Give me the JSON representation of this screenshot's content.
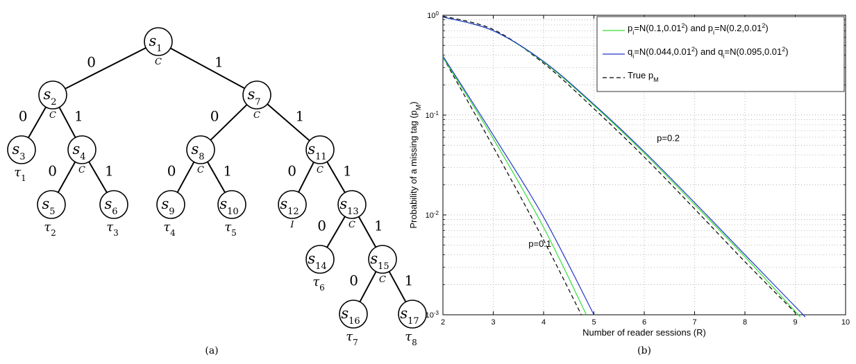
{
  "tree": {
    "nodes": [
      {
        "id": "s1",
        "base": "s",
        "sub": "1",
        "below": "C"
      },
      {
        "id": "s2",
        "base": "s",
        "sub": "2",
        "below": "C"
      },
      {
        "id": "s3",
        "base": "s",
        "sub": "3",
        "below": "τ1"
      },
      {
        "id": "s4",
        "base": "s",
        "sub": "4",
        "below": "C"
      },
      {
        "id": "s5",
        "base": "s",
        "sub": "5",
        "below": "τ2"
      },
      {
        "id": "s6",
        "base": "s",
        "sub": "6",
        "below": "τ3"
      },
      {
        "id": "s7",
        "base": "s",
        "sub": "7",
        "below": "C"
      },
      {
        "id": "s8",
        "base": "s",
        "sub": "8",
        "below": "C"
      },
      {
        "id": "s9",
        "base": "s",
        "sub": "9",
        "below": "τ4"
      },
      {
        "id": "s10",
        "base": "s",
        "sub": "10",
        "below": "τ5"
      },
      {
        "id": "s11",
        "base": "s",
        "sub": "11",
        "below": "C"
      },
      {
        "id": "s12",
        "base": "s",
        "sub": "12",
        "below": "I"
      },
      {
        "id": "s13",
        "base": "s",
        "sub": "13",
        "below": "C"
      },
      {
        "id": "s14",
        "base": "s",
        "sub": "14",
        "below": "τ6"
      },
      {
        "id": "s15",
        "base": "s",
        "sub": "15",
        "below": "C"
      },
      {
        "id": "s16",
        "base": "s",
        "sub": "16",
        "below": "τ7"
      },
      {
        "id": "s17",
        "base": "s",
        "sub": "17",
        "below": "τ8"
      }
    ],
    "edges": [
      {
        "from": "s1",
        "to": "s2",
        "label": "0"
      },
      {
        "from": "s1",
        "to": "s7",
        "label": "1"
      },
      {
        "from": "s2",
        "to": "s3",
        "label": "0"
      },
      {
        "from": "s2",
        "to": "s4",
        "label": "1"
      },
      {
        "from": "s4",
        "to": "s5",
        "label": "0"
      },
      {
        "from": "s4",
        "to": "s6",
        "label": "1"
      },
      {
        "from": "s7",
        "to": "s8",
        "label": "0"
      },
      {
        "from": "s7",
        "to": "s11",
        "label": "1"
      },
      {
        "from": "s8",
        "to": "s9",
        "label": "0"
      },
      {
        "from": "s8",
        "to": "s10",
        "label": "1"
      },
      {
        "from": "s11",
        "to": "s12",
        "label": "0"
      },
      {
        "from": "s11",
        "to": "s13",
        "label": "1"
      },
      {
        "from": "s13",
        "to": "s14",
        "label": "0"
      },
      {
        "from": "s13",
        "to": "s15",
        "label": "1"
      },
      {
        "from": "s15",
        "to": "s16",
        "label": "0"
      },
      {
        "from": "s15",
        "to": "s17",
        "label": "1"
      }
    ]
  },
  "captions": {
    "a": "(a)",
    "b": "(b)"
  },
  "chart_data": {
    "type": "line",
    "title": "",
    "xlabel": "Number of reader sessions (R)",
    "ylabel_main": "Probability of a missing tag (p",
    "ylabel_sub": "M",
    "ylabel_close": ")",
    "xlim": [
      2,
      10
    ],
    "ylim": [
      0.001,
      1
    ],
    "yscale": "log",
    "grid": true,
    "xticks": [
      "2",
      "3",
      "4",
      "5",
      "6",
      "7",
      "8",
      "9",
      "10"
    ],
    "yticks": [
      {
        "base": "10",
        "exp": "0",
        "value": 1
      },
      {
        "base": "10",
        "exp": "-1",
        "value": 0.1
      },
      {
        "base": "10",
        "exp": "-2",
        "value": 0.01
      },
      {
        "base": "10",
        "exp": "-3",
        "value": 0.001
      }
    ],
    "legend_position": "top-right",
    "legend": [
      {
        "parts": [
          "p",
          "i",
          "=N(0.1,0.01",
          "2",
          ") and p",
          "i",
          "=N(0.2,0.01",
          "2",
          ")"
        ],
        "color": "#33dd33",
        "dash": ""
      },
      {
        "parts": [
          "q",
          "i",
          "=N(0.044,0.01",
          "2",
          ") and q",
          "i",
          "=N(0.095,0.01",
          "2",
          ")"
        ],
        "color": "#2233cc",
        "dash": ""
      },
      {
        "parts": [
          "True p",
          "M",
          "",
          "",
          "",
          "",
          "",
          "",
          ""
        ],
        "color": "#000000",
        "dash": "6 4"
      }
    ],
    "annotations": [
      {
        "text": "p=0.2",
        "x": 6.25,
        "y": 0.055
      },
      {
        "text": "p=0.1",
        "x": 3.7,
        "y": 0.0048
      }
    ],
    "series": [
      {
        "group": "p=0.2",
        "kind": "true",
        "color": "#000000",
        "dash": "6 4",
        "points": [
          [
            2,
            0.98
          ],
          [
            3,
            0.72
          ],
          [
            4,
            0.33
          ],
          [
            5,
            0.116
          ],
          [
            6,
            0.038
          ],
          [
            7,
            0.0115
          ],
          [
            8,
            0.0034
          ],
          [
            9,
            0.00105
          ]
        ]
      },
      {
        "group": "p=0.2",
        "kind": "p",
        "color": "#33dd33",
        "dash": "",
        "points": [
          [
            2,
            0.96
          ],
          [
            3,
            0.7
          ],
          [
            4,
            0.34
          ],
          [
            5,
            0.125
          ],
          [
            6,
            0.0415
          ],
          [
            7,
            0.0127
          ],
          [
            8,
            0.0038
          ],
          [
            9.1,
            0.00095
          ]
        ]
      },
      {
        "group": "p=0.2",
        "kind": "q",
        "color": "#2233cc",
        "dash": "",
        "points": [
          [
            2,
            0.96
          ],
          [
            3,
            0.7
          ],
          [
            4,
            0.345
          ],
          [
            5,
            0.128
          ],
          [
            6,
            0.043
          ],
          [
            7,
            0.0133
          ],
          [
            8,
            0.004
          ],
          [
            9.2,
            0.00095
          ]
        ]
      },
      {
        "group": "p=0.1",
        "kind": "true",
        "color": "#000000",
        "dash": "6 4",
        "points": [
          [
            2,
            0.38
          ],
          [
            3,
            0.048
          ],
          [
            4,
            0.0056
          ],
          [
            4.75,
            0.001
          ]
        ]
      },
      {
        "group": "p=0.1",
        "kind": "p",
        "color": "#33dd33",
        "dash": "",
        "points": [
          [
            2,
            0.38
          ],
          [
            3,
            0.058
          ],
          [
            4,
            0.0075
          ],
          [
            4.85,
            0.001
          ]
        ]
      },
      {
        "group": "p=0.1",
        "kind": "q",
        "color": "#2233cc",
        "dash": "",
        "points": [
          [
            2,
            0.39
          ],
          [
            3,
            0.063
          ],
          [
            4,
            0.0095
          ],
          [
            5.0,
            0.001
          ]
        ]
      }
    ]
  }
}
